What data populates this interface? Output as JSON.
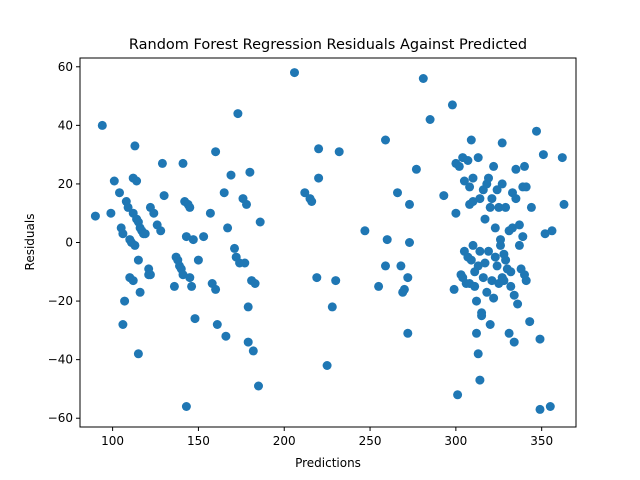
{
  "chart_data": {
    "type": "scatter",
    "title": "Random Forest Regression Residuals Against Predicted",
    "xlabel": "Predictions",
    "ylabel": "Residuals",
    "xlim": [
      81,
      370
    ],
    "ylim": [
      -63,
      63
    ],
    "xticks": [
      100,
      150,
      200,
      250,
      300,
      350
    ],
    "yticks": [
      -60,
      -40,
      -20,
      0,
      20,
      40,
      60
    ],
    "grid": false,
    "legend": false,
    "marker_color": "#1f77b4",
    "series": [
      {
        "points": [
          [
            90,
            9
          ],
          [
            94,
            40
          ],
          [
            99,
            10
          ],
          [
            101,
            21
          ],
          [
            104,
            17
          ],
          [
            105,
            5
          ],
          [
            106,
            3
          ],
          [
            106,
            -28
          ],
          [
            107,
            -20
          ],
          [
            108,
            14
          ],
          [
            109,
            12
          ],
          [
            110,
            1
          ],
          [
            110,
            -12
          ],
          [
            111,
            0
          ],
          [
            112,
            22
          ],
          [
            112,
            10
          ],
          [
            112,
            -13
          ],
          [
            113,
            33
          ],
          [
            113,
            -1
          ],
          [
            114,
            21
          ],
          [
            114,
            8
          ],
          [
            115,
            7
          ],
          [
            115,
            -6
          ],
          [
            115,
            -38
          ],
          [
            116,
            5
          ],
          [
            116,
            -17
          ],
          [
            117,
            4
          ],
          [
            118,
            3
          ],
          [
            119,
            3
          ],
          [
            121,
            -9
          ],
          [
            121,
            -11
          ],
          [
            122,
            12
          ],
          [
            122,
            -11
          ],
          [
            124,
            10
          ],
          [
            126,
            6
          ],
          [
            128,
            4
          ],
          [
            129,
            27
          ],
          [
            130,
            16
          ],
          [
            136,
            -15
          ],
          [
            137,
            -5
          ],
          [
            138,
            -6
          ],
          [
            139,
            -8
          ],
          [
            140,
            -9
          ],
          [
            141,
            27
          ],
          [
            141,
            -11
          ],
          [
            142,
            14
          ],
          [
            143,
            2
          ],
          [
            143,
            -56
          ],
          [
            144,
            13
          ],
          [
            145,
            12
          ],
          [
            145,
            -12
          ],
          [
            146,
            -15
          ],
          [
            147,
            1
          ],
          [
            148,
            -26
          ],
          [
            150,
            -6
          ],
          [
            153,
            2
          ],
          [
            157,
            10
          ],
          [
            158,
            -14
          ],
          [
            160,
            31
          ],
          [
            160,
            -16
          ],
          [
            161,
            -28
          ],
          [
            165,
            17
          ],
          [
            166,
            -32
          ],
          [
            167,
            5
          ],
          [
            169,
            23
          ],
          [
            171,
            -2
          ],
          [
            172,
            -5
          ],
          [
            173,
            44
          ],
          [
            174,
            -7
          ],
          [
            176,
            15
          ],
          [
            177,
            -7
          ],
          [
            178,
            13
          ],
          [
            179,
            -22
          ],
          [
            179,
            -34
          ],
          [
            180,
            24
          ],
          [
            181,
            -13
          ],
          [
            182,
            -37
          ],
          [
            183,
            -14
          ],
          [
            185,
            -49
          ],
          [
            186,
            7
          ],
          [
            206,
            58
          ],
          [
            212,
            17
          ],
          [
            215,
            15
          ],
          [
            216,
            14
          ],
          [
            219,
            -12
          ],
          [
            220,
            22
          ],
          [
            220,
            32
          ],
          [
            225,
            -42
          ],
          [
            228,
            -22
          ],
          [
            230,
            -13
          ],
          [
            232,
            31
          ],
          [
            247,
            4
          ],
          [
            255,
            -15
          ],
          [
            259,
            -8
          ],
          [
            259,
            35
          ],
          [
            260,
            1
          ],
          [
            266,
            17
          ],
          [
            268,
            -8
          ],
          [
            269,
            -17
          ],
          [
            270,
            -16
          ],
          [
            272,
            -12
          ],
          [
            272,
            -31
          ],
          [
            273,
            13
          ],
          [
            273,
            0
          ],
          [
            277,
            25
          ],
          [
            281,
            56
          ],
          [
            285,
            42
          ],
          [
            293,
            16
          ],
          [
            298,
            47
          ],
          [
            299,
            -16
          ],
          [
            300,
            10
          ],
          [
            300,
            27
          ],
          [
            301,
            -52
          ],
          [
            302,
            26
          ],
          [
            303,
            -11
          ],
          [
            304,
            29
          ],
          [
            304,
            -12
          ],
          [
            305,
            -3
          ],
          [
            305,
            21
          ],
          [
            306,
            -14
          ],
          [
            307,
            28
          ],
          [
            307,
            -5
          ],
          [
            308,
            19
          ],
          [
            308,
            13
          ],
          [
            308,
            -14
          ],
          [
            309,
            35
          ],
          [
            309,
            -6
          ],
          [
            310,
            22
          ],
          [
            310,
            14
          ],
          [
            310,
            -1
          ],
          [
            311,
            -10
          ],
          [
            311,
            -15
          ],
          [
            312,
            -20
          ],
          [
            312,
            -31
          ],
          [
            313,
            29
          ],
          [
            313,
            -8
          ],
          [
            313,
            -38
          ],
          [
            314,
            -47
          ],
          [
            314,
            15
          ],
          [
            314,
            -3
          ],
          [
            315,
            -24
          ],
          [
            315,
            -25
          ],
          [
            316,
            18
          ],
          [
            316,
            -12
          ],
          [
            317,
            -7
          ],
          [
            317,
            8
          ],
          [
            318,
            20
          ],
          [
            318,
            -17
          ],
          [
            319,
            22
          ],
          [
            319,
            -3
          ],
          [
            320,
            12
          ],
          [
            320,
            -28
          ],
          [
            321,
            -13
          ],
          [
            321,
            15
          ],
          [
            322,
            -19
          ],
          [
            322,
            26
          ],
          [
            323,
            5
          ],
          [
            323,
            -5
          ],
          [
            324,
            -8
          ],
          [
            324,
            18
          ],
          [
            325,
            -14
          ],
          [
            325,
            12
          ],
          [
            326,
            -1
          ],
          [
            326,
            1
          ],
          [
            327,
            20
          ],
          [
            327,
            34
          ],
          [
            327,
            -12
          ],
          [
            328,
            -13
          ],
          [
            328,
            -4
          ],
          [
            329,
            12
          ],
          [
            329,
            -6
          ],
          [
            330,
            -9
          ],
          [
            331,
            -31
          ],
          [
            331,
            4
          ],
          [
            332,
            -10
          ],
          [
            332,
            -15
          ],
          [
            333,
            17
          ],
          [
            333,
            5
          ],
          [
            334,
            -34
          ],
          [
            334,
            -18
          ],
          [
            335,
            25
          ],
          [
            335,
            15
          ],
          [
            336,
            -21
          ],
          [
            337,
            6
          ],
          [
            337,
            -1
          ],
          [
            338,
            -9
          ],
          [
            339,
            19
          ],
          [
            339,
            2
          ],
          [
            340,
            26
          ],
          [
            340,
            -11
          ],
          [
            341,
            19
          ],
          [
            341,
            -13
          ],
          [
            343,
            -27
          ],
          [
            344,
            12
          ],
          [
            347,
            38
          ],
          [
            349,
            -33
          ],
          [
            349,
            -57
          ],
          [
            351,
            30
          ],
          [
            352,
            3
          ],
          [
            355,
            -56
          ],
          [
            356,
            4
          ],
          [
            362,
            29
          ],
          [
            363,
            13
          ]
        ]
      }
    ]
  }
}
